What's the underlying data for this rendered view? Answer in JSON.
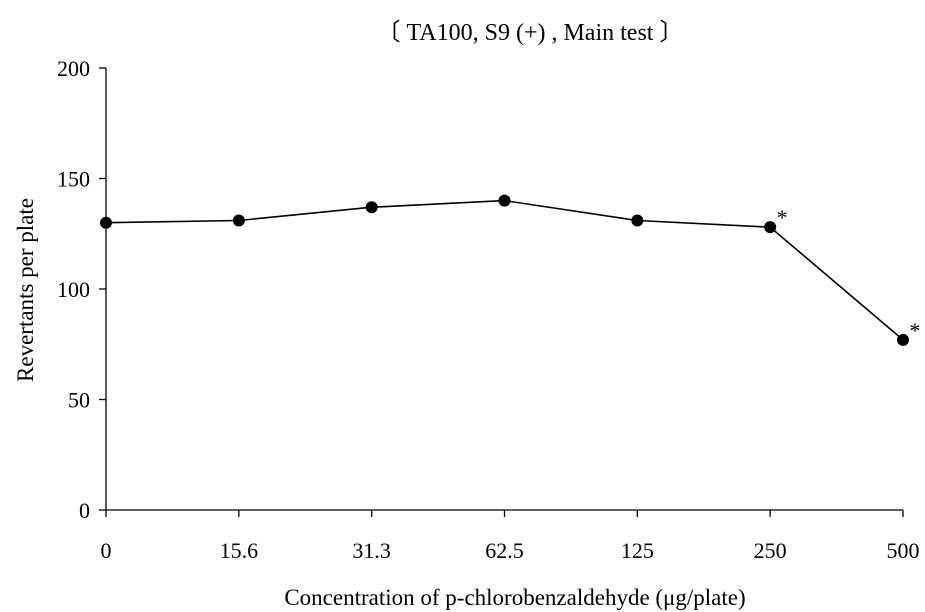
{
  "chart_data": {
    "type": "line",
    "title": "〔 TA100, S9 (+) , Main test 〕",
    "xlabel": "Concentration of p-chlorobenzaldehyde (μg/plate)",
    "ylabel": "Revertants per plate",
    "categories": [
      "0",
      "15.6",
      "31.3",
      "62.5",
      "125",
      "250",
      "500"
    ],
    "series": [
      {
        "values": [
          130,
          131,
          137,
          140,
          131,
          128,
          77
        ]
      }
    ],
    "annotations": [
      {
        "category": "250",
        "text": "*"
      },
      {
        "category": "500",
        "text": "*"
      }
    ],
    "ylim": [
      0,
      200
    ],
    "yticks": [
      0,
      50,
      100,
      150,
      200
    ],
    "grid": false,
    "legend": "none",
    "colors": {
      "line": "#000000",
      "marker": "#000000"
    }
  }
}
